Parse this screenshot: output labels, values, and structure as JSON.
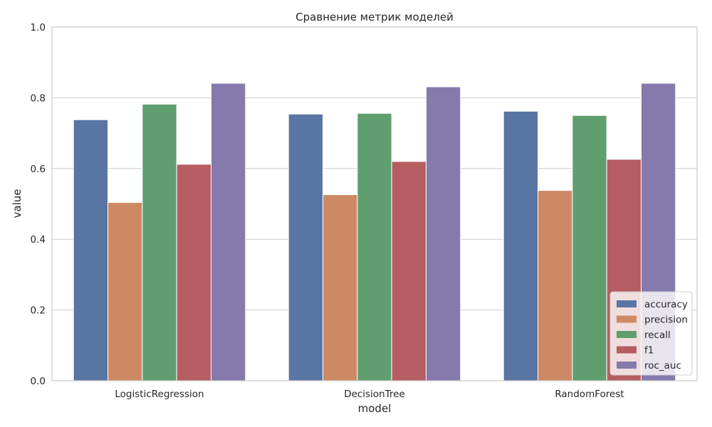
{
  "chart_data": {
    "type": "bar",
    "title": "Сравнение метрик моделей",
    "xlabel": "model",
    "ylabel": "value",
    "ylim": [
      0,
      1
    ],
    "yticks": [
      "0.0",
      "0.2",
      "0.4",
      "0.6",
      "0.8",
      "1.0"
    ],
    "categories": [
      "LogisticRegression",
      "DecisionTree",
      "RandomForest"
    ],
    "grid": true,
    "legend_position": "lower-right",
    "series": [
      {
        "name": "accuracy",
        "color": "#5975a4",
        "values": [
          0.738,
          0.754,
          0.762
        ]
      },
      {
        "name": "precision",
        "color": "#cc8963",
        "values": [
          0.504,
          0.526,
          0.538
        ]
      },
      {
        "name": "recall",
        "color": "#5f9e6e",
        "values": [
          0.782,
          0.756,
          0.75
        ]
      },
      {
        "name": "f1",
        "color": "#b55d60",
        "values": [
          0.612,
          0.62,
          0.626
        ]
      },
      {
        "name": "roc_auc",
        "color": "#857aab",
        "values": [
          0.841,
          0.831,
          0.841
        ]
      }
    ]
  }
}
